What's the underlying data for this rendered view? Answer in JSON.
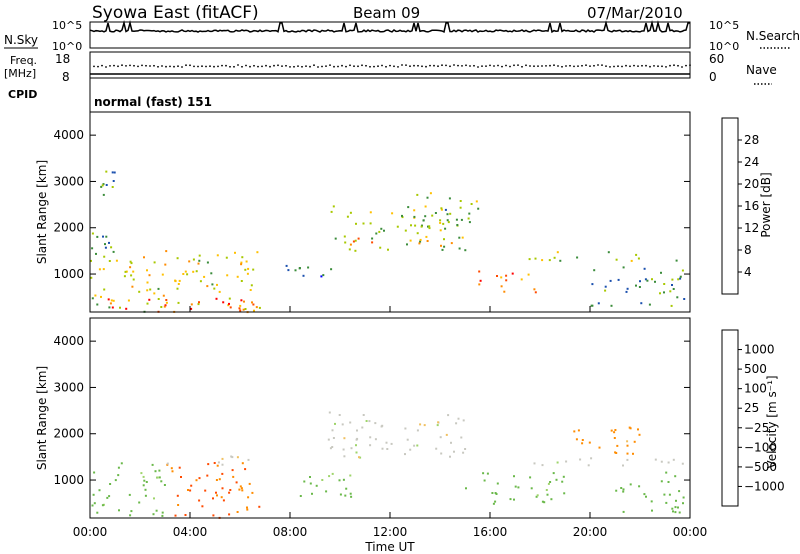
{
  "header": {
    "station": "Syowa East (fitACF)",
    "beam": "Beam 09",
    "date": "07/Mar/2010",
    "cpid_label": "CPID",
    "cpid_value": "normal (fast) 151"
  },
  "top_panels": {
    "nsky_label": "N.Sky",
    "nsky_ticks": [
      "10^5",
      "10^0"
    ],
    "nsearch_label": "N.Search",
    "nsearch_ticks": [
      "10^5",
      "10^0"
    ],
    "freq_label_line1": "Freq.",
    "freq_label_line2": "[MHz]",
    "freq_ticks": [
      "18",
      "8"
    ],
    "nave_label": "Nave",
    "nave_ticks": [
      "60",
      "0"
    ]
  },
  "x_axis": {
    "label": "Time UT",
    "ticks": [
      "00:00",
      "04:00",
      "08:00",
      "12:00",
      "16:00",
      "20:00",
      "00:00"
    ]
  },
  "power_panel": {
    "ylabel": "Slant Range [km]",
    "yticks": [
      "4000",
      "3000",
      "2000",
      "1000"
    ],
    "colorbar_label": "Power [dB]",
    "colorbar_ticks": [
      "28",
      "24",
      "20",
      "16",
      "12",
      "8",
      "4"
    ],
    "colors": [
      "#ff0000",
      "#ff4a00",
      "#ff8c00",
      "#ffc000",
      "#a8c800",
      "#3a8c3a",
      "#1a4fae",
      "#0000ff"
    ]
  },
  "velocity_panel": {
    "ylabel": "Slant Range [km]",
    "yticks": [
      "4000",
      "3000",
      "2000",
      "1000"
    ],
    "colorbar_label": "Velocity [m s⁻¹]",
    "colorbar_ticks": [
      "1000",
      "500",
      "100",
      "25",
      "−25",
      "−100",
      "−500",
      "−1000"
    ],
    "colors": [
      "#1a3a9c",
      "#2a7a4a",
      "#6ab84a",
      "#9ed46a",
      "#c8c8c0",
      "#f0c060",
      "#ff8c00",
      "#ff4a00",
      "#ff0000"
    ]
  },
  "chart_data": [
    {
      "type": "heatmap",
      "title": "Power",
      "xlabel": "Time UT",
      "ylabel": "Slant Range [km]",
      "xlim": [
        "00:00",
        "24:00"
      ],
      "ylim": [
        180,
        4500
      ],
      "colorbar": {
        "label": "Power [dB]",
        "range": [
          0,
          30
        ],
        "ticks": [
          4,
          8,
          12,
          16,
          20,
          24,
          28
        ]
      },
      "regions": [
        {
          "t": [
            0.0,
            6.8
          ],
          "r": [
            200,
            1400
          ],
          "dB": 16
        },
        {
          "t": [
            0.0,
            6.8
          ],
          "r": [
            200,
            500
          ],
          "dB": 26
        },
        {
          "t": [
            0.0,
            1.0
          ],
          "r": [
            1400,
            3300
          ],
          "dB": 10
        },
        {
          "t": [
            3.0,
            6.8
          ],
          "r": [
            1350,
            1550
          ],
          "dB": 18
        },
        {
          "t": [
            7.8,
            10.0
          ],
          "r": [
            800,
            1200
          ],
          "dB": 8
        },
        {
          "t": [
            9.5,
            15.0
          ],
          "r": [
            1500,
            2500
          ],
          "dB": 14
        },
        {
          "t": [
            10.0,
            14.5
          ],
          "r": [
            1600,
            1800
          ],
          "dB": 22
        },
        {
          "t": [
            13.0,
            15.5
          ],
          "r": [
            2000,
            2800
          ],
          "dB": 12
        },
        {
          "t": [
            15.5,
            18.0
          ],
          "r": [
            600,
            1100
          ],
          "dB": 24
        },
        {
          "t": [
            17.5,
            23.8
          ],
          "r": [
            1300,
            1500
          ],
          "dB": 14
        },
        {
          "t": [
            20.0,
            23.8
          ],
          "r": [
            300,
            1200
          ],
          "dB": 10
        }
      ]
    },
    {
      "type": "heatmap",
      "title": "Velocity",
      "xlabel": "Time UT",
      "ylabel": "Slant Range [km]",
      "xlim": [
        "00:00",
        "24:00"
      ],
      "ylim": [
        180,
        4500
      ],
      "colorbar": {
        "label": "Velocity [m s⁻¹]",
        "range": [
          -1000,
          1000
        ],
        "ticks": [
          1000,
          500,
          100,
          25,
          -25,
          -100,
          -500,
          -1000
        ]
      },
      "regions": [
        {
          "t": [
            0.0,
            3.0
          ],
          "r": [
            200,
            1400
          ],
          "v": 200
        },
        {
          "t": [
            3.0,
            6.8
          ],
          "r": [
            200,
            1400
          ],
          "v": -500
        },
        {
          "t": [
            3.0,
            6.8
          ],
          "r": [
            1350,
            1550
          ],
          "v": 0
        },
        {
          "t": [
            7.8,
            10.5
          ],
          "r": [
            600,
            1200
          ],
          "v": 150
        },
        {
          "t": [
            9.5,
            15.0
          ],
          "r": [
            1500,
            2500
          ],
          "v": 0
        },
        {
          "t": [
            15.0,
            19.0
          ],
          "r": [
            500,
            1200
          ],
          "v": 200
        },
        {
          "t": [
            17.5,
            23.8
          ],
          "r": [
            1300,
            1500
          ],
          "v": 0
        },
        {
          "t": [
            19.0,
            22.0
          ],
          "r": [
            1500,
            2200
          ],
          "v": -200
        },
        {
          "t": [
            21.0,
            23.8
          ],
          "r": [
            300,
            1200
          ],
          "v": 300
        }
      ]
    }
  ]
}
